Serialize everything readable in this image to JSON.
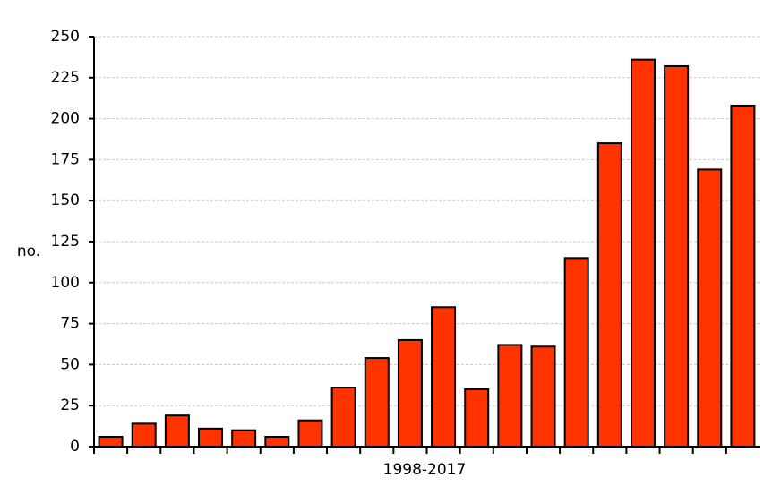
{
  "chart_data": {
    "type": "bar",
    "x_label": "1998-2017",
    "y_label": "no.",
    "categories": [
      null,
      null,
      null,
      null,
      null,
      null,
      null,
      null,
      null,
      null,
      null,
      null,
      null,
      null,
      null,
      null,
      null,
      null,
      null,
      null
    ],
    "values": [
      6,
      14,
      19,
      11,
      10,
      6,
      16,
      36,
      54,
      65,
      85,
      35,
      62,
      61,
      115,
      185,
      236,
      232,
      169,
      208
    ],
    "color": "#ff3300",
    "ylim": [
      0,
      250
    ],
    "yticks": [
      0,
      25,
      50,
      75,
      100,
      125,
      150,
      175,
      200,
      225,
      250
    ],
    "grid": true
  }
}
